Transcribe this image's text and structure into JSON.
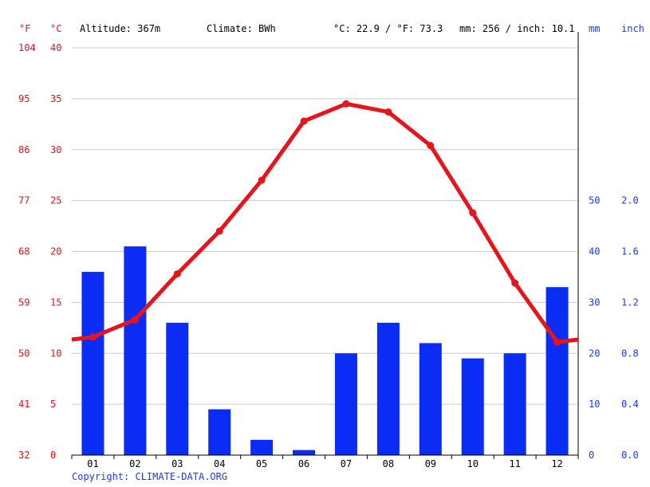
{
  "header": {
    "unit_f": "°F",
    "unit_c": "°C",
    "altitude": "Altitude: 367m",
    "climate": "Climate: BWh",
    "avg_temp": "°C: 22.9 / °F: 73.3",
    "precip": "mm: 256 / inch: 10.1",
    "unit_mm": "mm",
    "unit_inch": "inch"
  },
  "copyright": "Copyright: CLIMATE-DATA.ORG",
  "colors": {
    "temperature": "#e8141b",
    "precipitation": "#0a2cf5",
    "grid": "#cccccc"
  },
  "chart_data": {
    "type": "bar+line",
    "categories": [
      "01",
      "02",
      "03",
      "04",
      "05",
      "06",
      "07",
      "08",
      "09",
      "10",
      "11",
      "12"
    ],
    "series": [
      {
        "kind": "bar",
        "axis": "mm",
        "values": [
          36,
          41,
          26,
          9,
          3,
          1,
          20,
          26,
          22,
          19,
          20,
          33
        ]
      },
      {
        "kind": "line",
        "axis": "°C",
        "values": [
          11.6,
          13.3,
          17.8,
          22.0,
          27.0,
          32.8,
          34.5,
          33.7,
          30.4,
          23.8,
          16.9,
          11.1
        ]
      }
    ],
    "left_axis_c": {
      "ticks": [
        "0",
        "5",
        "10",
        "15",
        "20",
        "25",
        "30",
        "35",
        "40"
      ],
      "ylim": [
        0,
        40
      ]
    },
    "left_axis_f": {
      "ticks": [
        "32",
        "41",
        "50",
        "59",
        "68",
        "77",
        "86",
        "95",
        "104"
      ]
    },
    "right_axis_mm": {
      "ticks": [
        "0",
        "10",
        "20",
        "30",
        "40",
        "50"
      ],
      "ylim": [
        0,
        80
      ]
    },
    "right_axis_inch": {
      "ticks": [
        "0.0",
        "0.4",
        "0.8",
        "1.2",
        "1.6",
        "2.0"
      ]
    }
  }
}
